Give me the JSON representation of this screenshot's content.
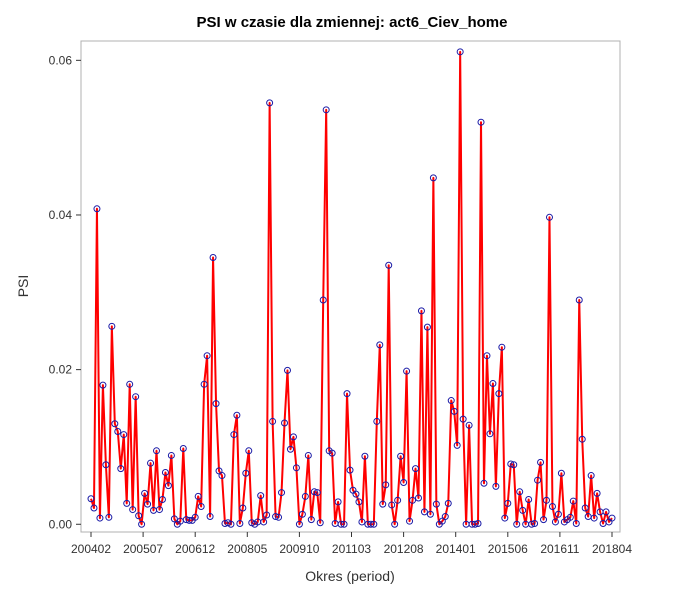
{
  "chart_data": {
    "type": "line",
    "title": "PSI w czasie dla zmiennej: act6_Ciev_home",
    "xlabel": "Okres (period)",
    "ylabel": "PSI",
    "ylim": [
      -0.001,
      0.0625
    ],
    "x_tick_labels": [
      "200402",
      "200507",
      "200612",
      "200805",
      "200910",
      "201103",
      "201208",
      "201401",
      "201506",
      "201611",
      "201804"
    ],
    "y_tick_values": [
      0.0,
      0.02,
      0.04,
      0.06
    ],
    "y_tick_labels": [
      "0.00",
      "0.02",
      "0.04",
      "0.06"
    ],
    "grid": false,
    "colors": {
      "line": "#ff0000",
      "marker": "#1a1aa6",
      "frame": "#b0b0b0"
    },
    "series": [
      {
        "values": [
          0.0033,
          0.0021,
          0.0408,
          0.0008,
          0.018,
          0.0077,
          0.0009,
          0.0256,
          0.013,
          0.012,
          0.0072,
          0.0116,
          0.0027,
          0.0181,
          0.0019,
          0.0165,
          0.0011,
          0.0,
          0.004,
          0.0026,
          0.0079,
          0.0018,
          0.0095,
          0.0019,
          0.0032,
          0.0067,
          0.005,
          0.0089,
          0.0007,
          0.0,
          0.0004,
          0.0098,
          0.0006,
          0.0005,
          0.0005,
          0.0009,
          0.0036,
          0.0023,
          0.0181,
          0.0218,
          0.001,
          0.0345,
          0.0156,
          0.0069,
          0.0063,
          0.0001,
          0.0002,
          0.0,
          0.0116,
          0.0141,
          0.0001,
          0.0021,
          0.0066,
          0.0095,
          0.0002,
          0.0,
          0.0003,
          0.0037,
          0.0003,
          0.0012,
          0.0545,
          0.0133,
          0.001,
          0.0009,
          0.0041,
          0.0131,
          0.0199,
          0.0097,
          0.0113,
          0.0073,
          0.0,
          0.0013,
          0.0036,
          0.0089,
          0.0006,
          0.0042,
          0.0041,
          0.0002,
          0.029,
          0.0536,
          0.0095,
          0.0092,
          0.0001,
          0.0029,
          0.0,
          0.0,
          0.0169,
          0.007,
          0.0044,
          0.0039,
          0.0029,
          0.0003,
          0.0088,
          0.0,
          0.0,
          0.0,
          0.0133,
          0.0232,
          0.0026,
          0.0051,
          0.0335,
          0.0025,
          0.0,
          0.0031,
          0.0088,
          0.0054,
          0.0198,
          0.0004,
          0.0031,
          0.0072,
          0.0034,
          0.0276,
          0.0016,
          0.0255,
          0.0013,
          0.0448,
          0.0026,
          0.0,
          0.0004,
          0.001,
          0.0027,
          0.016,
          0.0146,
          0.0102,
          0.0611,
          0.0136,
          0.0,
          0.0128,
          0.0,
          0.0,
          0.0001,
          0.052,
          0.0053,
          0.0218,
          0.0117,
          0.0182,
          0.0049,
          0.0169,
          0.0229,
          0.0008,
          0.0027,
          0.0078,
          0.0077,
          0.0,
          0.0042,
          0.0018,
          0.0,
          0.0032,
          0.0,
          0.0001,
          0.0057,
          0.008,
          0.0006,
          0.0031,
          0.0397,
          0.0023,
          0.0003,
          0.0013,
          0.0066,
          0.0003,
          0.0006,
          0.0009,
          0.003,
          0.0001,
          0.029,
          0.011,
          0.0021,
          0.001,
          0.0063,
          0.0008,
          0.004,
          0.0016,
          0.0001,
          0.0016,
          0.0003,
          0.0008
        ]
      }
    ]
  }
}
